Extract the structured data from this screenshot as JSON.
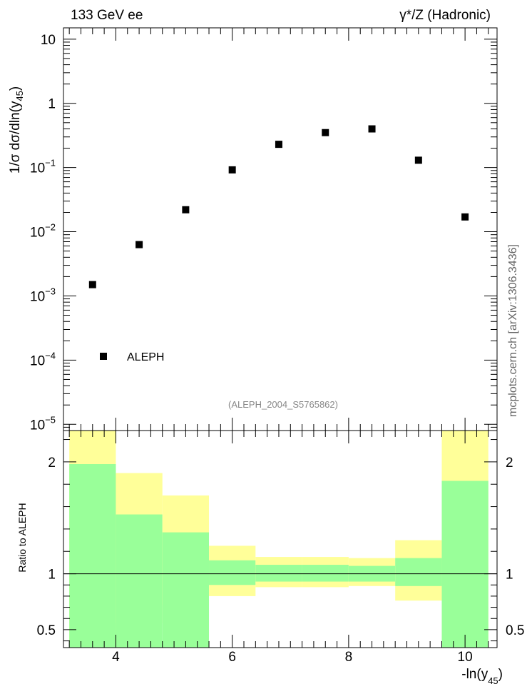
{
  "header": {
    "left_label": "133 GeV ee",
    "right_label": "γ*/Z (Hadronic)"
  },
  "side_label": "mcplots.cern.ch [arXiv:1306.3436]",
  "analysis_label": "(ALEPH_2004_S5765862)",
  "colors": {
    "green_band": "#99ff99",
    "yellow_band": "#ffff99",
    "marker": "#000000"
  },
  "chart_data": [
    {
      "type": "scatter",
      "ylabel": "1/σ dσ/dln(y45)",
      "ylabel_parts": {
        "main": "1/σ  dσ/dln(y",
        "sub": "45",
        "close": ")"
      },
      "yscale": "log",
      "ylim": [
        8e-06,
        15
      ],
      "xlim": [
        3.1,
        10.55
      ],
      "y_tick_labels": [
        {
          "value": 10,
          "base": "10",
          "exp": ""
        },
        {
          "value": 1,
          "base": "1",
          "exp": ""
        },
        {
          "value": 0.1,
          "base": "10",
          "exp": "−1"
        },
        {
          "value": 0.01,
          "base": "10",
          "exp": "−2"
        },
        {
          "value": 0.001,
          "base": "10",
          "exp": "−3"
        },
        {
          "value": 0.0001,
          "base": "10",
          "exp": "−4"
        },
        {
          "value": 1e-05,
          "base": "10",
          "exp": "−5"
        }
      ],
      "legend": {
        "entry": "ALEPH",
        "position": "bottom-left"
      },
      "series": [
        {
          "name": "ALEPH",
          "x": [
            3.6,
            4.4,
            5.2,
            6.0,
            6.8,
            7.6,
            8.4,
            9.2,
            10.0
          ],
          "y": [
            0.0015,
            0.0063,
            0.022,
            0.092,
            0.23,
            0.35,
            0.4,
            0.13,
            0.017
          ]
        }
      ]
    },
    {
      "type": "area",
      "ylabel": "Ratio to ALEPH",
      "xlabel": "-ln(y45)",
      "xlabel_parts": {
        "main": "-ln(y",
        "sub": "45",
        "close": ")"
      },
      "xlim": [
        3.1,
        10.55
      ],
      "ylim": [
        0.34,
        2.28
      ],
      "reference_line": 1,
      "x_ticks": [
        4,
        6,
        8,
        10
      ],
      "y_ticks": [
        0.5,
        1,
        2
      ],
      "bins": [
        {
          "lo": 3.2,
          "hi": 4.0,
          "green": [
            0.34,
            1.98
          ],
          "yellow": [
            0.34,
            2.28
          ]
        },
        {
          "lo": 4.0,
          "hi": 4.8,
          "green": [
            0.34,
            1.53
          ],
          "yellow": [
            0.56,
            1.9
          ]
        },
        {
          "lo": 4.8,
          "hi": 5.6,
          "green": [
            0.34,
            1.37
          ],
          "yellow": [
            0.72,
            1.7
          ]
        },
        {
          "lo": 5.6,
          "hi": 6.4,
          "green": [
            0.9,
            1.12
          ],
          "yellow": [
            0.8,
            1.25
          ]
        },
        {
          "lo": 6.4,
          "hi": 7.2,
          "green": [
            0.93,
            1.08
          ],
          "yellow": [
            0.88,
            1.15
          ]
        },
        {
          "lo": 7.2,
          "hi": 8.0,
          "green": [
            0.93,
            1.08
          ],
          "yellow": [
            0.88,
            1.15
          ]
        },
        {
          "lo": 8.0,
          "hi": 8.8,
          "green": [
            0.93,
            1.07
          ],
          "yellow": [
            0.89,
            1.14
          ]
        },
        {
          "lo": 8.8,
          "hi": 9.6,
          "green": [
            0.89,
            1.14
          ],
          "yellow": [
            0.76,
            1.3
          ]
        },
        {
          "lo": 9.6,
          "hi": 10.4,
          "green": [
            0.34,
            1.83
          ],
          "yellow": [
            0.34,
            2.28
          ]
        }
      ]
    }
  ]
}
